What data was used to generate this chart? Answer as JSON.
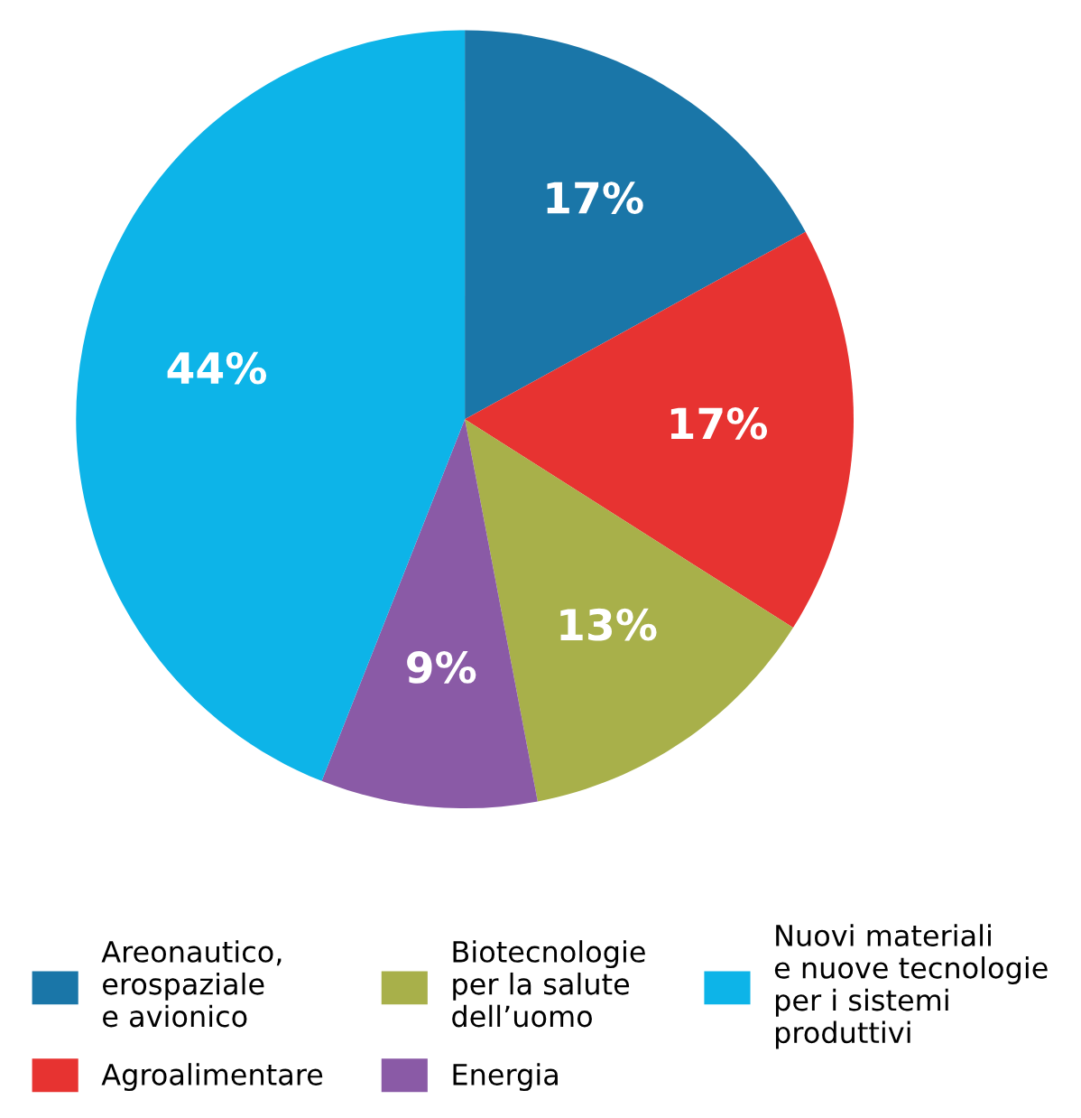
{
  "chart_data": {
    "type": "pie",
    "categories": [
      "Areonautico,\nerospaziale\ne avionico",
      "Agroalimentare",
      "Biotecnologie\nper la salute\ndell’uomo",
      "Energia",
      "Nuovi materiali\ne nuove tecnologie\nper i sistemi\nproduttivi"
    ],
    "values": [
      17,
      17,
      13,
      9,
      44
    ],
    "value_labels": [
      "17%",
      "17%",
      "13%",
      "9%",
      "44%"
    ],
    "colors": [
      "#1a76a8",
      "#e73331",
      "#a8b04a",
      "#8a5aa6",
      "#0db4e8"
    ],
    "legend": "bottom"
  }
}
